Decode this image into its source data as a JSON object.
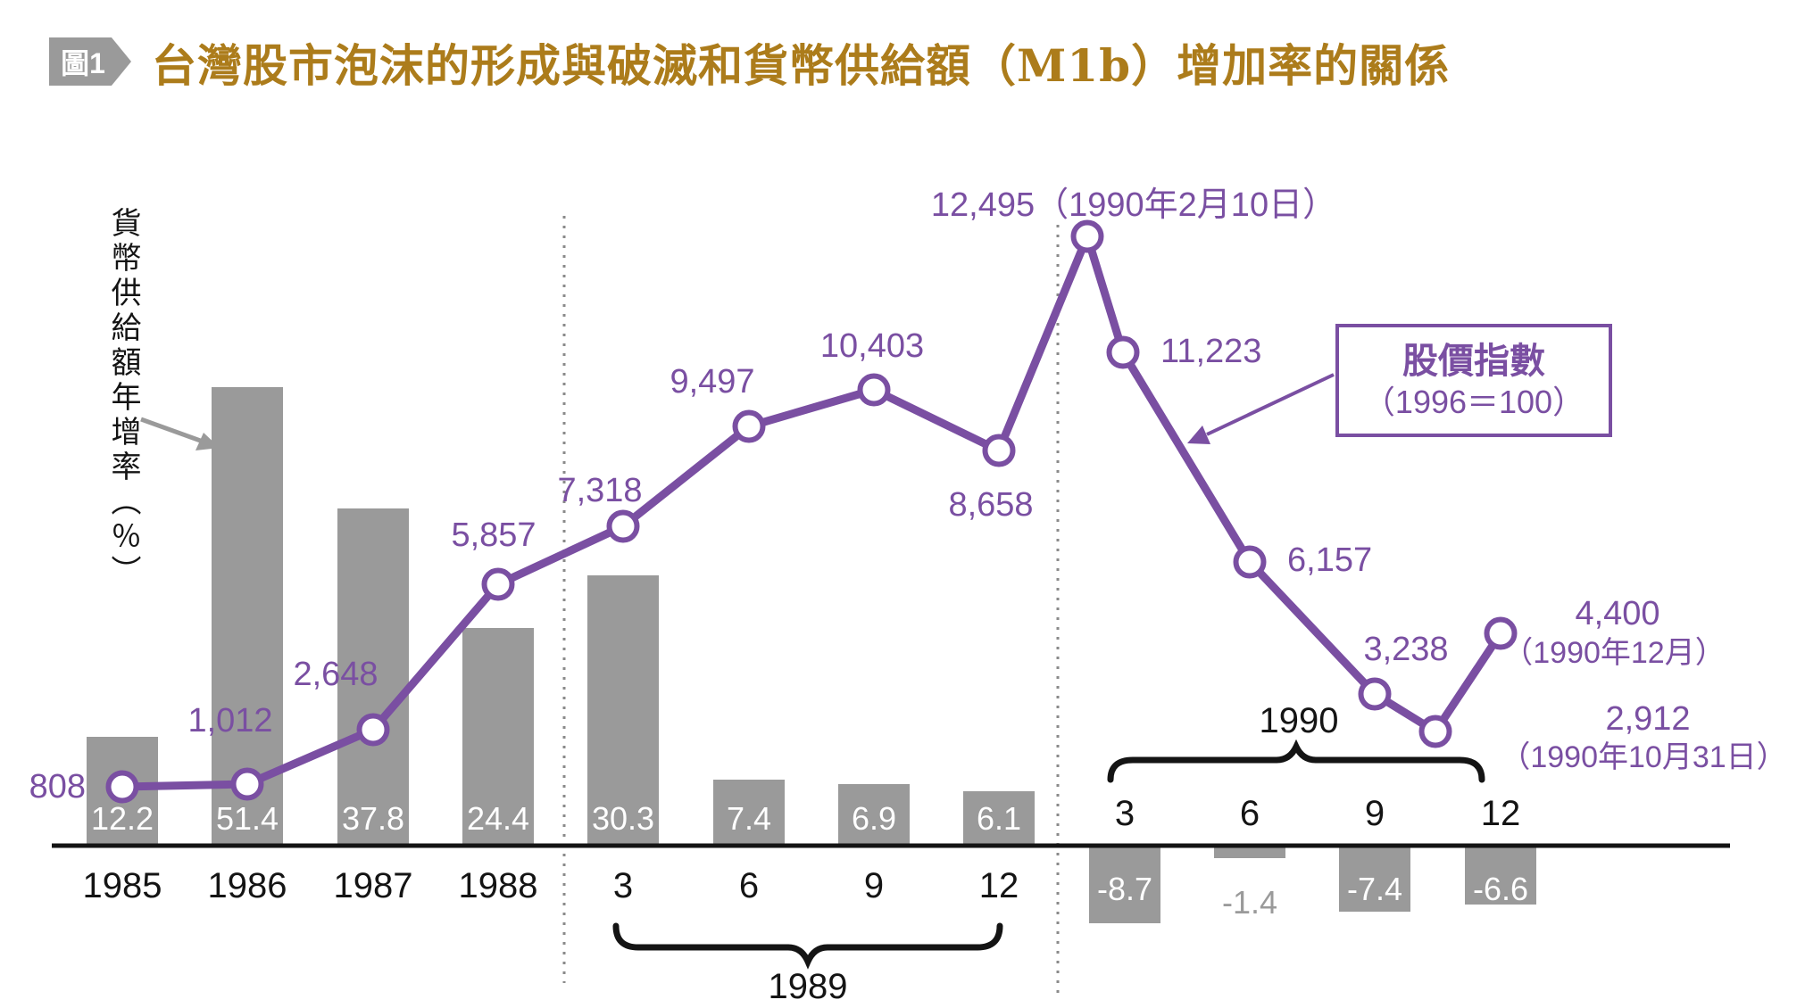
{
  "figure": {
    "badge": "圖1",
    "title": "台灣股市泡沫的形成與破滅和貨幣供給額（M1b）增加率的關係"
  },
  "y_axis_label": "貨幣供給額年增率（％）",
  "legend": {
    "line1": "股價指數",
    "line2": "（1996＝100）"
  },
  "colors": {
    "purple": "#7a4fa2",
    "bar_gray": "#9a9a9a",
    "title_gold": "#ac7c1b",
    "axis_black": "#141414",
    "muted_gray": "#999999"
  },
  "chart_data": {
    "type": "bar+line combo",
    "categories": [
      "1985",
      "1986",
      "1987",
      "1988",
      "1989-03",
      "1989-06",
      "1989-09",
      "1989-12",
      "1990-03",
      "1990-06",
      "1990-09",
      "1990-12"
    ],
    "x_tick_labels": [
      "1985",
      "1986",
      "1987",
      "1988",
      "3",
      "6",
      "9",
      "12",
      "3",
      "6",
      "9",
      "12"
    ],
    "bar_series": {
      "name": "貨幣供給額年增率（％）",
      "values": [
        12.2,
        51.4,
        37.8,
        24.4,
        30.3,
        7.4,
        6.9,
        6.1,
        -8.7,
        -1.4,
        -7.4,
        -6.6
      ],
      "labels": [
        "12.2",
        "51.4",
        "37.8",
        "24.4",
        "30.3",
        "7.4",
        "6.9",
        "6.1",
        "-8.7",
        "-1.4",
        "-7.4",
        "-6.6"
      ]
    },
    "line_series": {
      "name": "股價指數（1996＝100）",
      "points": [
        {
          "x": "1985",
          "value": 808,
          "label": "808"
        },
        {
          "x": "1986",
          "value": 1012,
          "label": "1,012"
        },
        {
          "x": "1987",
          "value": 2648,
          "label": "2,648"
        },
        {
          "x": "1988",
          "value": 5857,
          "label": "5,857"
        },
        {
          "x": "1989-03",
          "value": 7318,
          "label": "7,318"
        },
        {
          "x": "1989-06",
          "value": 9497,
          "label": "9,497"
        },
        {
          "x": "1989-09",
          "value": 10403,
          "label": "10,403"
        },
        {
          "x": "1989-12",
          "value": 8658,
          "label": "8,658"
        },
        {
          "x": "1990-02-10",
          "value": 12495,
          "label": "12,495（1990年2月10日）"
        },
        {
          "x": "1990-03",
          "value": 11223,
          "label": "11,223"
        },
        {
          "x": "1990-06",
          "value": 6157,
          "label": "6,157"
        },
        {
          "x": "1990-09",
          "value": 3238,
          "label": "3,238"
        },
        {
          "x": "1990-10-31",
          "value": 2912,
          "label": "2,912",
          "label2": "（1990年10月31日）"
        },
        {
          "x": "1990-12",
          "value": 4400,
          "label": "4,400",
          "label2": "（1990年12月）"
        }
      ]
    },
    "group_braces": [
      {
        "label": "1989",
        "position": "below-axis"
      },
      {
        "label": "1990",
        "position": "above-axis"
      }
    ],
    "axis": {
      "baseline_value": 0,
      "grid": "off",
      "separators": "dotted vertical lines between 1988|1989 and 1989|1990"
    }
  }
}
